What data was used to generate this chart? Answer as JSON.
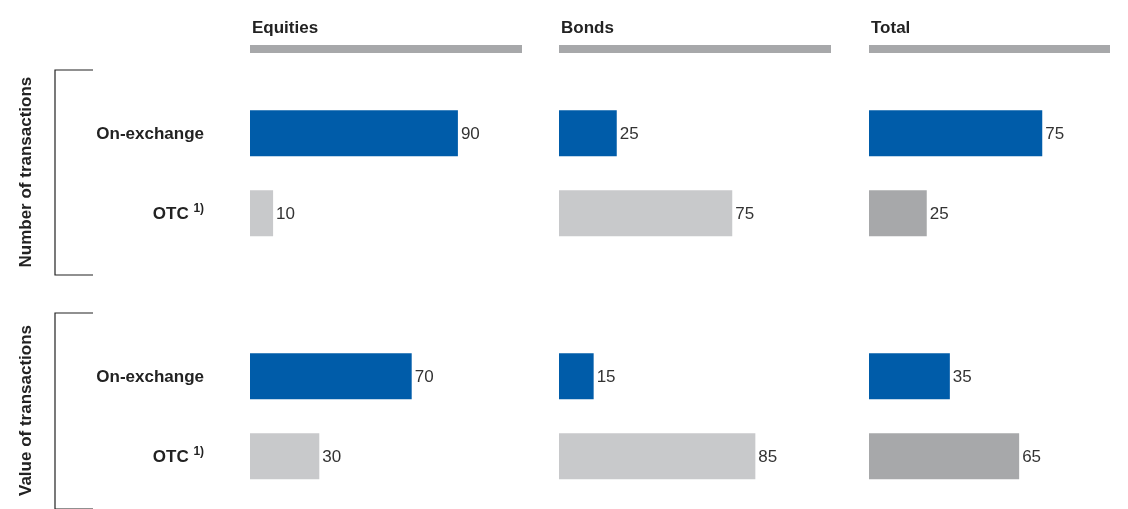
{
  "chart_data": [
    {
      "type": "bar",
      "orientation": "horizontal",
      "title": "Equities",
      "ylabel": "Number of transactions",
      "categories": [
        "On-exchange",
        "OTC $^{1)}$"
      ],
      "values": [
        90,
        10
      ],
      "colors": [
        "#005ca9",
        "#c8c9cb"
      ],
      "data_labels": true,
      "tick_labels": "y"
    },
    {
      "type": "bar",
      "orientation": "horizontal",
      "title": "Bonds",
      "categories": [
        null,
        null
      ],
      "values": [
        25,
        75
      ],
      "colors": [
        "#005ca9",
        "#c8c9cb"
      ],
      "data_labels": true,
      "tick_labels": false
    },
    {
      "type": "bar",
      "orientation": "horizontal",
      "title": "Total",
      "categories": [
        null,
        null
      ],
      "values": [
        75,
        25
      ],
      "colors": [
        "#005ca9",
        "#a7a8aa"
      ],
      "data_labels": true,
      "tick_labels": false
    },
    {
      "type": "bar",
      "orientation": "horizontal",
      "ylabel": "Value of transactions",
      "categories": [
        "On-exchange",
        "OTC $^{1)}$"
      ],
      "values": [
        70,
        30
      ],
      "colors": [
        "#005ca9",
        "#c8c9cb"
      ],
      "data_labels": true,
      "tick_labels": "y"
    },
    {
      "type": "bar",
      "orientation": "horizontal",
      "categories": [
        null,
        null
      ],
      "values": [
        15,
        85
      ],
      "colors": [
        "#005ca9",
        "#c8c9cb"
      ],
      "data_labels": true,
      "tick_labels": false
    },
    {
      "type": "bar",
      "orientation": "horizontal",
      "categories": [
        null,
        null
      ],
      "values": [
        35,
        65
      ],
      "colors": [
        "#005ca9",
        "#a7a8aa"
      ],
      "data_labels": true,
      "tick_labels": false
    }
  ]
}
